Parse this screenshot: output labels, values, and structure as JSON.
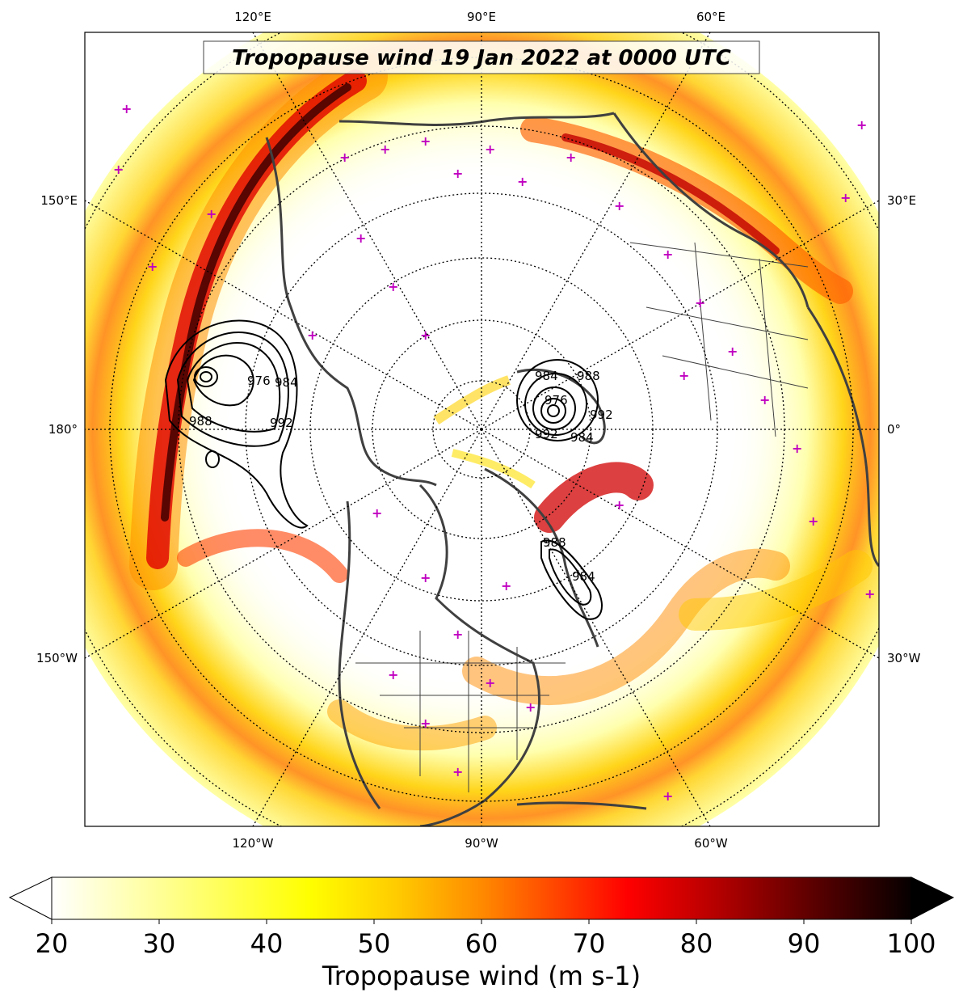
{
  "title": "Tropopause wind 19 Jan 2022 at 0000 UTC",
  "map": {
    "projection": "north-polar-stereographic",
    "top_lon_labels": [
      "120°E",
      "90°E",
      "60°E"
    ],
    "bottom_lon_labels": [
      "120°W",
      "90°W",
      "60°W"
    ],
    "left_lon_labels": [
      "150°E",
      "180°",
      "150°W"
    ],
    "right_lon_labels": [
      "30°E",
      "0°",
      "30°W"
    ],
    "contour_labels": [
      "976",
      "984",
      "988",
      "992",
      "976",
      "984",
      "992",
      "988",
      "984",
      "992",
      "988",
      "984"
    ],
    "observation_marker_color": "#c000c0",
    "coastline_color": "#404040",
    "graticule": "dotted"
  },
  "colorbar": {
    "label": "Tropopause wind (m s-1)",
    "ticks": [
      "20",
      "30",
      "40",
      "50",
      "60",
      "70",
      "80",
      "90",
      "100"
    ],
    "min": 20,
    "max": 100,
    "step": 2,
    "extend": "both",
    "cmap": "hot_r",
    "colors": {
      "low": "#ffffff",
      "mid_yellow": "#ffff00",
      "mid_orange": "#ff8000",
      "red": "#ff0000",
      "dark": "#000000"
    }
  }
}
